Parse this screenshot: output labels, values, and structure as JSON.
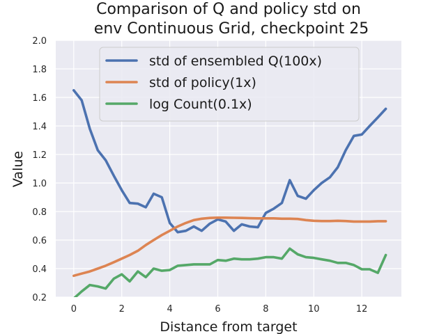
{
  "chart_data": {
    "type": "line",
    "title_line1": "Comparison of Q and policy std on",
    "title_line2": "env Continuous Grid, checkpoint 25",
    "xlabel": "Distance from target",
    "ylabel": "Value",
    "xlim": [
      -0.75,
      13.65
    ],
    "ylim": [
      0.2,
      2.0
    ],
    "xticks": [
      0,
      2,
      4,
      6,
      8,
      10,
      12
    ],
    "xtick_labels": [
      "0",
      "2",
      "4",
      "6",
      "8",
      "10",
      "12"
    ],
    "yticks": [
      0.2,
      0.4,
      0.6,
      0.8,
      1.0,
      1.2,
      1.4,
      1.6,
      1.8,
      2.0
    ],
    "ytick_labels": [
      "0.2",
      "0.4",
      "0.6",
      "0.8",
      "1.0",
      "1.2",
      "1.4",
      "1.6",
      "1.8",
      "2.0"
    ],
    "grid": true,
    "legend_position": "top-center",
    "background": "#eaeaf2",
    "x": [
      0,
      0.33,
      0.67,
      1.0,
      1.33,
      1.67,
      2.0,
      2.33,
      2.67,
      3.0,
      3.33,
      3.67,
      4.0,
      4.33,
      4.67,
      5.0,
      5.33,
      5.67,
      6.0,
      6.33,
      6.67,
      7.0,
      7.33,
      7.67,
      8.0,
      8.33,
      8.67,
      9.0,
      9.33,
      9.67,
      10.0,
      10.33,
      10.67,
      11.0,
      11.33,
      11.67,
      12.0,
      12.33,
      12.67,
      13.0
    ],
    "series": [
      {
        "name": "std of ensembled Q(100x)",
        "color": "#4c72b0",
        "values": [
          1.65,
          1.58,
          1.38,
          1.23,
          1.16,
          1.05,
          0.95,
          0.86,
          0.855,
          0.83,
          0.925,
          0.9,
          0.72,
          0.655,
          0.665,
          0.695,
          0.665,
          0.715,
          0.745,
          0.73,
          0.665,
          0.71,
          0.695,
          0.69,
          0.79,
          0.82,
          0.86,
          1.02,
          0.91,
          0.89,
          0.95,
          1.0,
          1.04,
          1.11,
          1.23,
          1.33,
          1.34,
          1.4,
          1.46,
          1.52
        ]
      },
      {
        "name": "std of policy(1x)",
        "color": "#dd8452",
        "values": [
          0.35,
          0.365,
          0.38,
          0.4,
          0.42,
          0.445,
          0.47,
          0.495,
          0.525,
          0.565,
          0.6,
          0.635,
          0.665,
          0.695,
          0.72,
          0.74,
          0.75,
          0.755,
          0.757,
          0.757,
          0.756,
          0.755,
          0.753,
          0.752,
          0.752,
          0.752,
          0.75,
          0.75,
          0.748,
          0.74,
          0.735,
          0.733,
          0.733,
          0.735,
          0.733,
          0.73,
          0.73,
          0.73,
          0.732,
          0.732
        ]
      },
      {
        "name": "log Count(0.1x)",
        "color": "#55a868",
        "values": [
          0.19,
          0.24,
          0.285,
          0.275,
          0.26,
          0.33,
          0.36,
          0.31,
          0.38,
          0.34,
          0.4,
          0.385,
          0.39,
          0.42,
          0.425,
          0.43,
          0.43,
          0.43,
          0.46,
          0.455,
          0.47,
          0.465,
          0.465,
          0.47,
          0.48,
          0.48,
          0.47,
          0.54,
          0.5,
          0.48,
          0.475,
          0.465,
          0.455,
          0.44,
          0.44,
          0.425,
          0.395,
          0.395,
          0.37,
          0.495
        ]
      }
    ]
  }
}
